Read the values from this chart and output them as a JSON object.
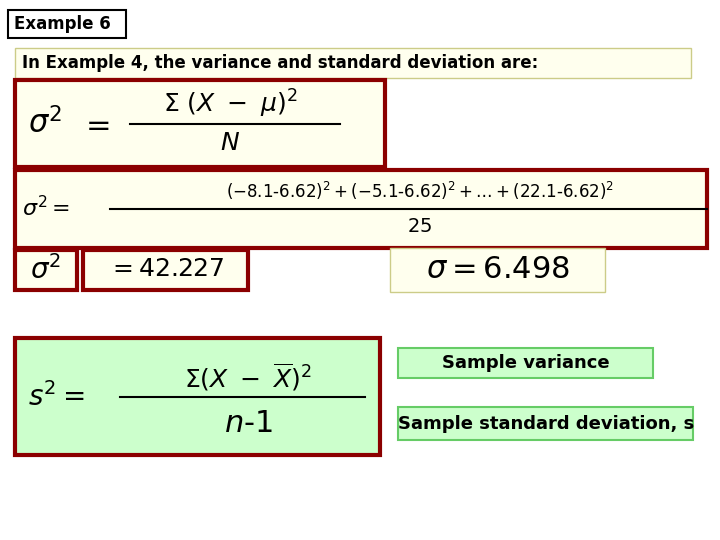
{
  "title": "Example 6",
  "subtitle": "In Example 4, the variance and standard deviation are:",
  "bg_color": "#ffffff",
  "yellow_bg": "#ffffee",
  "green_bg": "#ccffcc",
  "dark_red": "#8b0000",
  "black": "#000000",
  "dark_blue": "#000080",
  "text_color": "#000000",
  "label_variance": "Sample variance",
  "label_stddev": "Sample standard deviation, s"
}
